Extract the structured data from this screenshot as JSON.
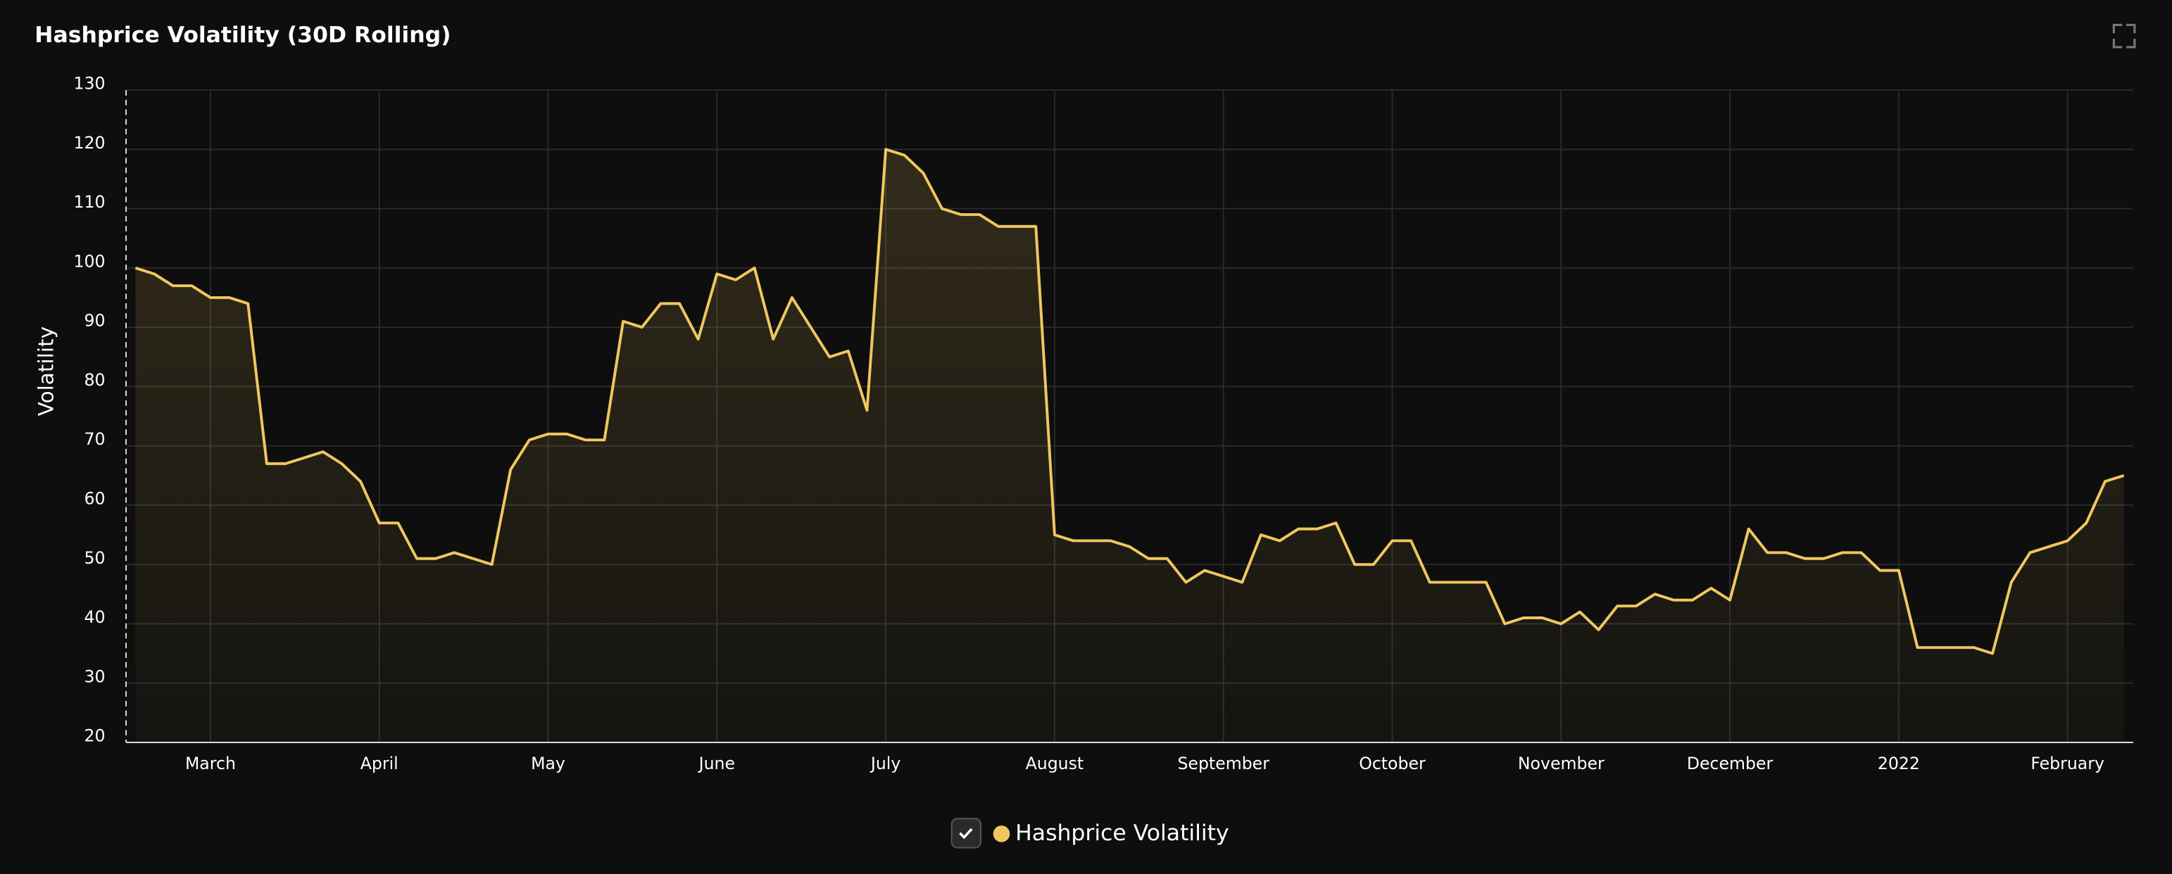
{
  "chart_data": {
    "type": "line",
    "title": "Hashprice Volatility (30D Rolling)",
    "y_label": "Volatility",
    "categories": [
      null,
      null,
      null,
      null,
      "March",
      null,
      null,
      null,
      null,
      null,
      null,
      null,
      null,
      "April",
      null,
      null,
      null,
      null,
      null,
      null,
      null,
      null,
      "May",
      null,
      null,
      null,
      null,
      null,
      null,
      null,
      null,
      "June",
      null,
      null,
      null,
      null,
      null,
      null,
      null,
      null,
      "July",
      null,
      null,
      null,
      null,
      null,
      null,
      null,
      null,
      "August",
      null,
      null,
      null,
      null,
      null,
      null,
      null,
      null,
      "September",
      null,
      null,
      null,
      null,
      null,
      null,
      null,
      null,
      "October",
      null,
      null,
      null,
      null,
      null,
      null,
      null,
      null,
      "November",
      null,
      null,
      null,
      null,
      null,
      null,
      null,
      null,
      "December",
      null,
      null,
      null,
      null,
      null,
      null,
      null,
      null,
      "2022",
      null,
      null,
      null,
      null,
      null,
      null,
      null,
      null,
      "February",
      null,
      null,
      null
    ],
    "series": [
      {
        "name": "Hashprice Volatility",
        "color": "#f0c75e",
        "values": [
          100,
          99,
          97,
          97,
          95,
          95,
          94,
          67,
          67,
          68,
          69,
          67,
          64,
          57,
          57,
          51,
          51,
          52,
          51,
          50,
          66,
          71,
          72,
          72,
          71,
          71,
          91,
          90,
          94,
          94,
          88,
          99,
          98,
          100,
          88,
          95,
          90,
          85,
          86,
          76,
          120,
          119,
          116,
          110,
          109,
          109,
          107,
          107,
          107,
          55,
          54,
          54,
          54,
          53,
          51,
          51,
          47,
          49,
          48,
          47,
          55,
          54,
          56,
          56,
          57,
          50,
          50,
          54,
          54,
          47,
          47,
          47,
          47,
          40,
          41,
          41,
          40,
          42,
          39,
          43,
          43,
          45,
          44,
          44,
          46,
          44,
          56,
          52,
          52,
          51,
          51,
          52,
          52,
          49,
          49,
          36,
          36,
          36,
          36,
          35,
          47,
          52,
          53,
          54,
          57,
          64,
          65
        ]
      }
    ],
    "ylim": [
      20,
      130
    ],
    "yticks": [
      20,
      30,
      40,
      50,
      60,
      70,
      80,
      90,
      100,
      110,
      120,
      130
    ],
    "grid": true
  }
}
